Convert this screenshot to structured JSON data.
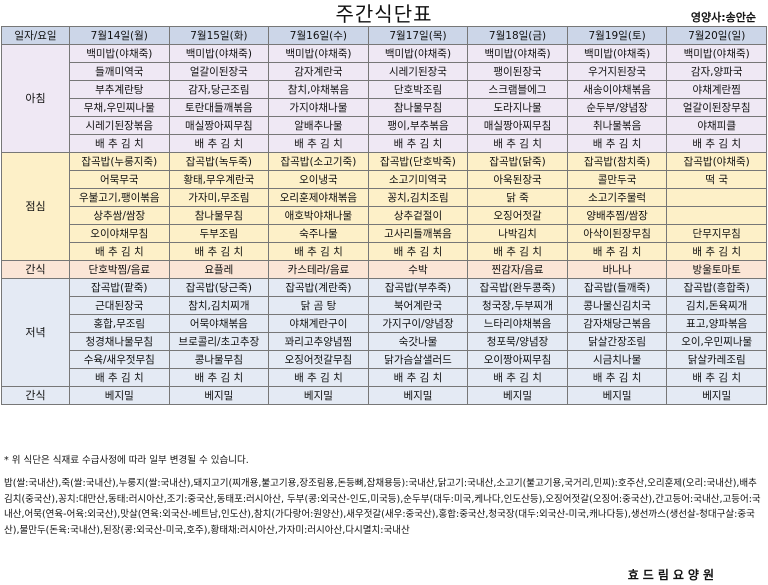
{
  "header": {
    "title": "주간식단표",
    "author": "영양사:송안순"
  },
  "columns": {
    "label": "일자/요일",
    "days": [
      "7월14일(월)",
      "7월15일(화)",
      "7월16일(수)",
      "7월17일(목)",
      "7월18일(금)",
      "7월19일(토)",
      "7월20일(일)"
    ]
  },
  "meals": [
    {
      "label": "아침",
      "rows": [
        [
          "백미밥(야채죽)",
          "백미밥(야채죽)",
          "백미밥(야채죽)",
          "백미밥(야채죽)",
          "백미밥(야채죽)",
          "백미밥(야채죽)",
          "백미밥(야채죽)"
        ],
        [
          "들깨미역국",
          "얼갈이된장국",
          "감자계란국",
          "시레기된장국",
          "팽이된장국",
          "우거지된장국",
          "감자,양파국"
        ],
        [
          "부추계란탕",
          "감자,당근조림",
          "참치,야채볶음",
          "단호박조림",
          "스크램블에그",
          "새송이야채볶음",
          "야채계란찜"
        ],
        [
          "무채,우민찌나물",
          "토란대들깨볶음",
          "가지야채나물",
          "참나물무침",
          "도라지나물",
          "순두부/양념장",
          "얼갈이된장무침"
        ],
        [
          "시레기된장볶음",
          "매실짱아찌무침",
          "알배추나물",
          "팽이,부추볶음",
          "매실짱아찌무침",
          "취나물볶음",
          "야채피클"
        ],
        [
          "배 추 김 치",
          "배 추 김 치",
          "배 추 김 치",
          "배 추 김 치",
          "배 추 김 치",
          "배 추 김 치",
          "배 추 김 치"
        ]
      ]
    },
    {
      "label": "점심",
      "rows": [
        [
          "잡곡밥(누룽지죽)",
          "잡곡밥(녹두죽)",
          "잡곡밥(소고기죽)",
          "잡곡밥(단호박죽)",
          "잡곡밥(닭죽)",
          "잡곡밥(참치죽)",
          "잡곡밥(야채죽)"
        ],
        [
          "어묵무국",
          "황태,무우계란국",
          "오이냉국",
          "소고기미역국",
          "아욱된장국",
          "콜만두국",
          "떡  국"
        ],
        [
          "우불고기,팽이볶음",
          "가자미,무조림",
          "오리훈제야채볶음",
          "꽁치,김치조림",
          "닭  죽",
          "소고기주물럭",
          ""
        ],
        [
          "상추쌈/쌈장",
          "참나물무침",
          "애호박야채나물",
          "상추겉절이",
          "오징어젓갈",
          "양배추찜/쌈장",
          ""
        ],
        [
          "오이야채무침",
          "두부조림",
          "숙주나물",
          "고사리들깨볶음",
          "나박김치",
          "아삭이된장무침",
          "단무지무침"
        ],
        [
          "배 추 김 치",
          "배 추 김 치",
          "배 추 김 치",
          "배 추 김 치",
          "배 추 김 치",
          "배 추 김 치",
          "배 추 김 치"
        ]
      ]
    },
    {
      "label": "간식",
      "rows": [
        [
          "단호박찜/음료",
          "요플레",
          "카스테라/음료",
          "수박",
          "찐감자/음료",
          "바나나",
          "방울토마토"
        ]
      ]
    },
    {
      "label": "저녁",
      "rows": [
        [
          "잡곡밥(팥죽)",
          "잡곡밥(당근죽)",
          "잡곡밥(계란죽)",
          "잡곡밥(부추죽)",
          "잡곡밥(완두콩죽)",
          "잡곡밥(들깨죽)",
          "잡곡밥(흥합죽)"
        ],
        [
          "근대된장국",
          "참치,김치찌개",
          "닭 곰 탕",
          "북어계란국",
          "청국장,두부찌개",
          "콩나물신김치국",
          "김치,돈육찌개"
        ],
        [
          "홍합,무조림",
          "어묵야채볶음",
          "야채계란구이",
          "가지구이/양념장",
          "느타리야채볶음",
          "감자채당근볶음",
          "표고,양파볶음"
        ],
        [
          "청경채나물무침",
          "브로콜리/초고추장",
          "꽈리고추양념찜",
          "숙갓나물",
          "청포묵/양념장",
          "닭살간장조림",
          "오이,우민찌나물"
        ],
        [
          "수육/새우젓무침",
          "콩나물무침",
          "오징어젓갈무침",
          "닭가슴살샐러드",
          "오이짱아찌무침",
          "시금치나물",
          "닭살카레조림"
        ],
        [
          "배 추 김 치",
          "배 추 김 치",
          "배 추 김 치",
          "배 추 김 치",
          "배 추 김 치",
          "배 추 김 치",
          "배 추 김 치"
        ]
      ]
    },
    {
      "label": "간식",
      "rows": [
        [
          "베지밀",
          "베지밀",
          "베지밀",
          "베지밀",
          "베지밀",
          "베지밀",
          "베지밀"
        ]
      ]
    }
  ],
  "note": "* 위 식단은 식재료 수급사정에 따라 일부 변경될 수 있습니다.",
  "origin": "밥(쌀:국내산),죽(쌀:국내산),누룽지(쌀:국내산),돼지고기(찌개용,불고기용,장조림용,돈등뼈,잡채용등):국내산,닭고기:국내산,소고기(불고기용,국거리,민찌):호주산,오리훈제(오리:국내산),배추김치(중국산),꽁치:대만산,동태:러시아산,조기:중국산,동태포:러시아산, 두부(콩:외국산-인도,미국등),순두부(대두:미국,케나다,인도산등),오징어젓갈(오징어:중국산),간고등어:국내산,고등어:국내산,어묵(연육-어육:외국산),맛살(연육:외국산-베트남,인도산),참치(가다랑어:원양산),새우젓갈(새우:중국산),홍합:중국산,청국장(대두:외국산-미국,캐나다등),생선까스(생선살-청대구살:중국산),물만두(돈육:국내산),된장(콩:외국산-미국,호주),황태채:러시아산,가자미:러시아산,다시멸치:국내산",
  "footer": "효드림요양원"
}
